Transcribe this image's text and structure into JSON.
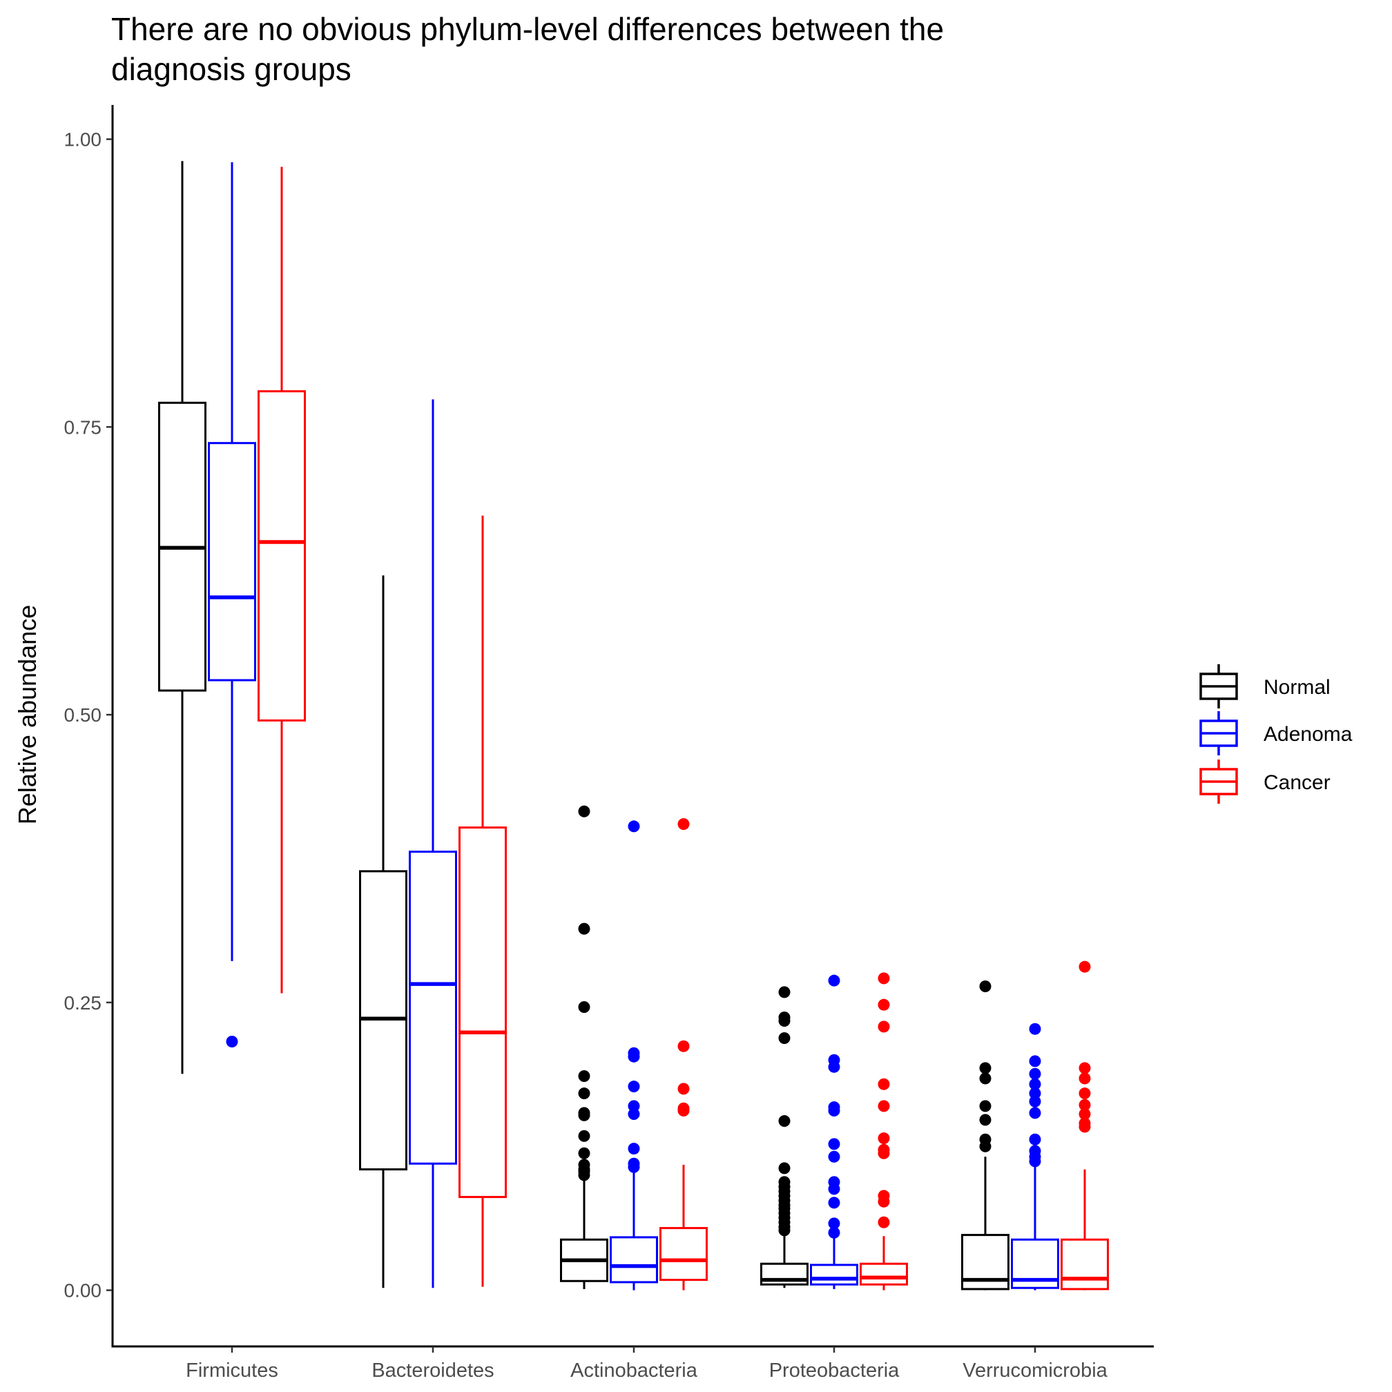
{
  "chart_data": {
    "type": "boxplot",
    "title": "There are no obvious phylum-level differences between the diagnosis groups",
    "title_lines": [
      "There are no obvious phylum-level differences between the",
      "diagnosis groups"
    ],
    "xlabel": "",
    "ylabel": "Relative abundance",
    "ylim": [
      -0.1,
      1.06
    ],
    "yticks": [
      0,
      0.25,
      0.5,
      0.75,
      1.0
    ],
    "ytick_labels": [
      "0.00",
      "0.25",
      "0.50",
      "0.75",
      "1.00"
    ],
    "grid": false,
    "legend_position": "right",
    "categories": [
      "Firmicutes",
      "Bacteroidetes",
      "Actinobacteria",
      "Proteobacteria",
      "Verrucomicrobia"
    ],
    "series": [
      {
        "name": "Normal",
        "color": "#000000",
        "boxes": [
          {
            "low": 0.188,
            "q1": 0.521,
            "median": 0.645,
            "q3": 0.771,
            "high": 0.981,
            "outliers": []
          },
          {
            "low": 0.002,
            "q1": 0.105,
            "median": 0.236,
            "q3": 0.364,
            "high": 0.621,
            "outliers": []
          },
          {
            "low": 0.001,
            "q1": 0.008,
            "median": 0.026,
            "q3": 0.044,
            "high": 0.098,
            "outliers": [
              0.416,
              0.314,
              0.246,
              0.186,
              0.171,
              0.154,
              0.152,
              0.134,
              0.119,
              0.109,
              0.105,
              0.103,
              0.1
            ]
          },
          {
            "low": 0.002,
            "q1": 0.005,
            "median": 0.009,
            "q3": 0.023,
            "high": 0.049,
            "outliers": [
              0.259,
              0.237,
              0.234,
              0.219,
              0.147,
              0.106,
              0.094,
              0.09,
              0.086,
              0.082,
              0.078,
              0.074,
              0.071,
              0.067,
              0.063,
              0.059,
              0.055,
              0.052
            ]
          },
          {
            "low": 0.0,
            "q1": 0.001,
            "median": 0.009,
            "q3": 0.048,
            "high": 0.116,
            "outliers": [
              0.264,
              0.193,
              0.184,
              0.16,
              0.148,
              0.131,
              0.125
            ]
          }
        ]
      },
      {
        "name": "Adenoma",
        "color": "#0000FF",
        "boxes": [
          {
            "low": 0.286,
            "q1": 0.53,
            "median": 0.602,
            "q3": 0.736,
            "high": 0.98,
            "outliers": [
              0.216
            ]
          },
          {
            "low": 0.002,
            "q1": 0.11,
            "median": 0.266,
            "q3": 0.381,
            "high": 0.774,
            "outliers": []
          },
          {
            "low": 0.0,
            "q1": 0.007,
            "median": 0.021,
            "q3": 0.046,
            "high": 0.103,
            "outliers": [
              0.403,
              0.206,
              0.203,
              0.177,
              0.16,
              0.153,
              0.123,
              0.11,
              0.107
            ]
          },
          {
            "low": 0.001,
            "q1": 0.005,
            "median": 0.01,
            "q3": 0.022,
            "high": 0.053,
            "outliers": [
              0.269,
              0.2,
              0.194,
              0.159,
              0.156,
              0.127,
              0.116,
              0.094,
              0.088,
              0.076,
              0.058,
              0.05
            ]
          },
          {
            "low": 0.0,
            "q1": 0.002,
            "median": 0.009,
            "q3": 0.044,
            "high": 0.109,
            "outliers": [
              0.227,
              0.199,
              0.188,
              0.179,
              0.171,
              0.164,
              0.154,
              0.131,
              0.121,
              0.116,
              0.112
            ]
          }
        ]
      },
      {
        "name": "Cancer",
        "color": "#FF0000",
        "boxes": [
          {
            "low": 0.258,
            "q1": 0.495,
            "median": 0.65,
            "q3": 0.781,
            "high": 0.976,
            "outliers": []
          },
          {
            "low": 0.003,
            "q1": 0.081,
            "median": 0.224,
            "q3": 0.402,
            "high": 0.673,
            "outliers": []
          },
          {
            "low": 0.0,
            "q1": 0.009,
            "median": 0.026,
            "q3": 0.054,
            "high": 0.109,
            "outliers": [
              0.405,
              0.212,
              0.175,
              0.158,
              0.156
            ]
          },
          {
            "low": 0.0,
            "q1": 0.005,
            "median": 0.011,
            "q3": 0.023,
            "high": 0.047,
            "outliers": [
              0.271,
              0.248,
              0.229,
              0.179,
              0.16,
              0.132,
              0.122,
              0.119,
              0.082,
              0.077,
              0.059
            ]
          },
          {
            "low": 0.0,
            "q1": 0.001,
            "median": 0.01,
            "q3": 0.044,
            "high": 0.105,
            "outliers": [
              0.281,
              0.193,
              0.184,
              0.171,
              0.161,
              0.153,
              0.145,
              0.142
            ]
          }
        ]
      }
    ]
  }
}
